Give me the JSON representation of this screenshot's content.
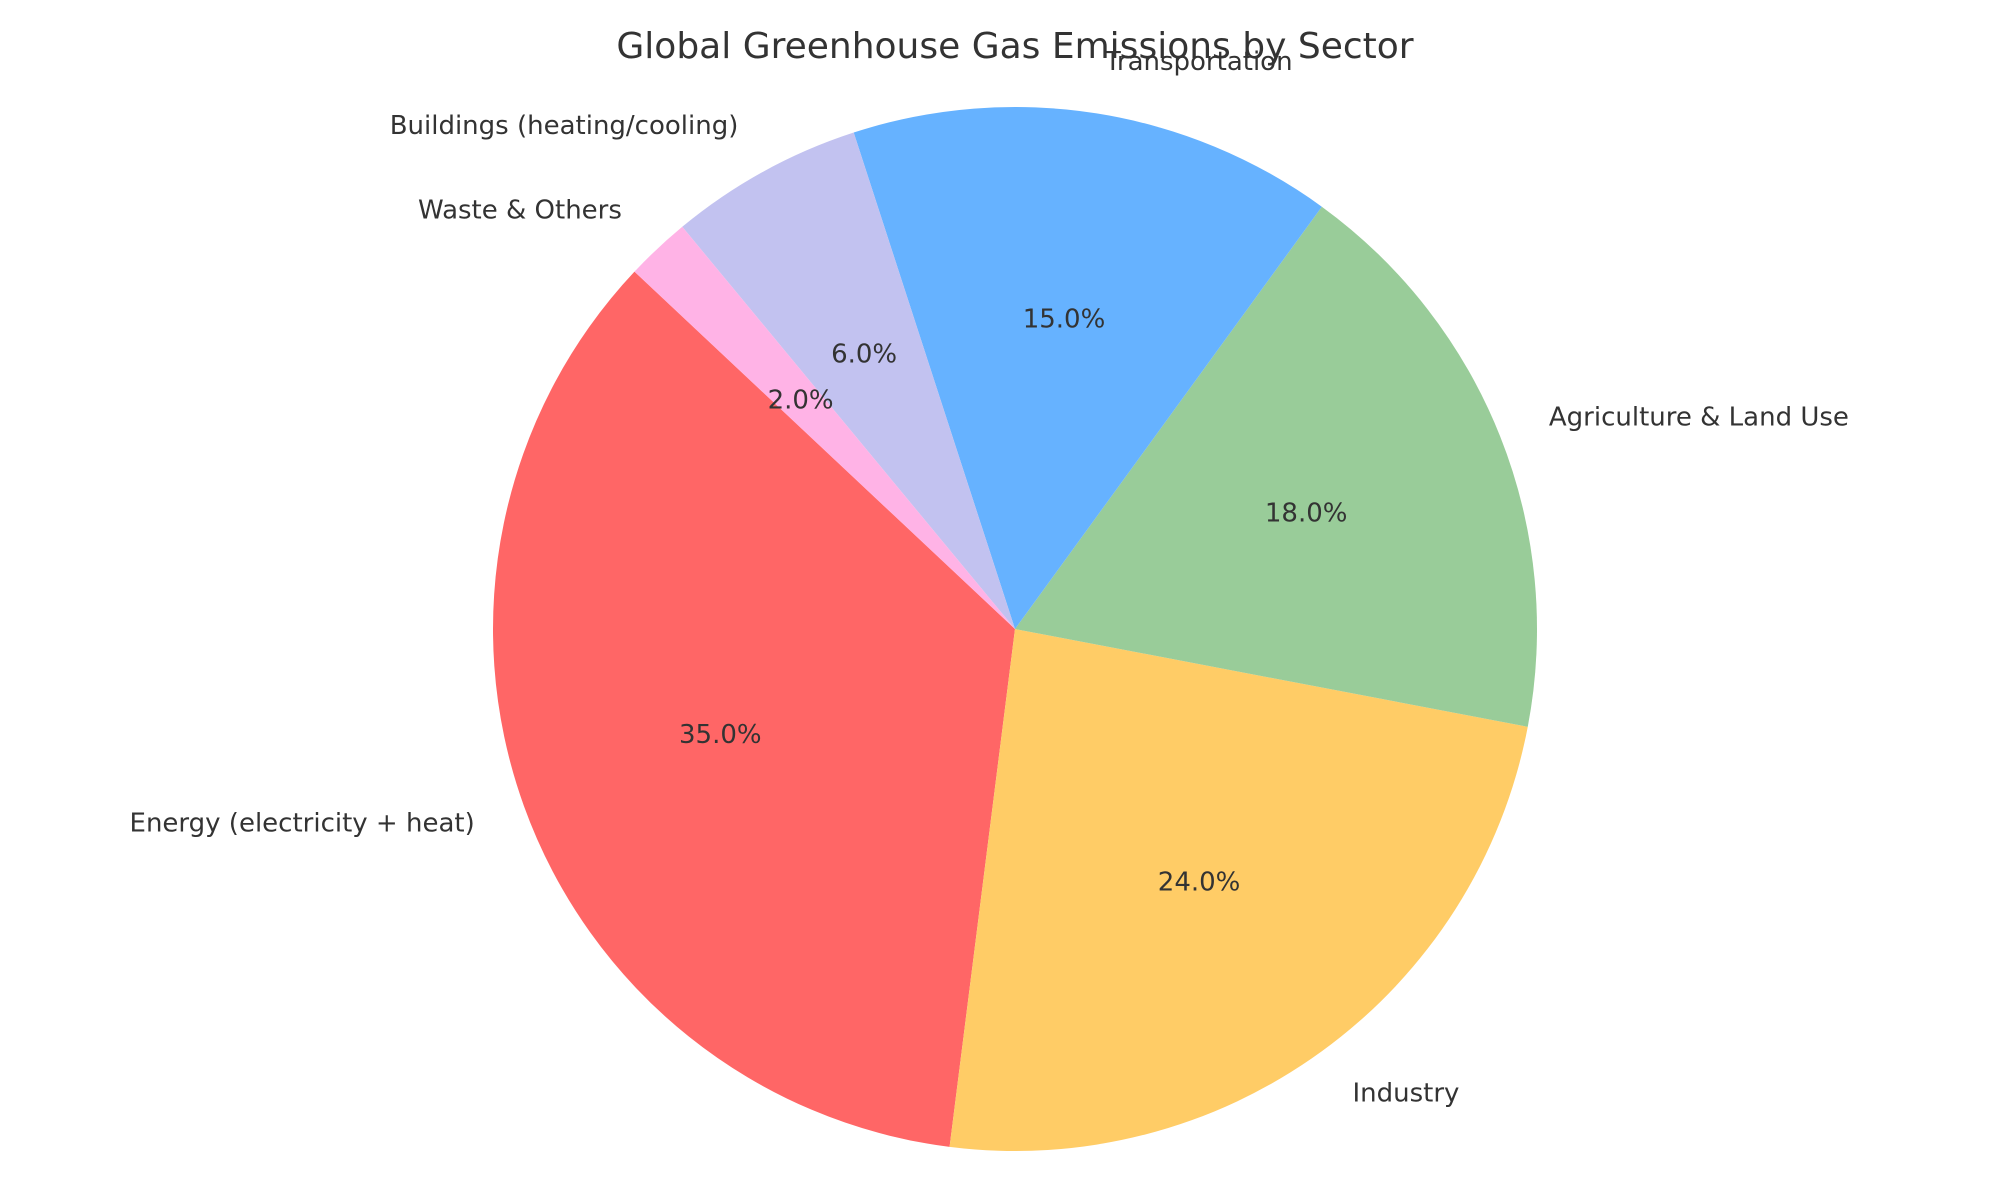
{
  "chart_data": {
    "type": "pie",
    "title": "Global Greenhouse Gas Emissions by Sector",
    "start_angle_deg": 136.8,
    "direction": "counterclockwise",
    "slices": [
      {
        "label": "Energy (electricity + heat)",
        "value": 35.0,
        "pct_label": "35.0%",
        "color": "#ff6666"
      },
      {
        "label": "Industry",
        "value": 24.0,
        "pct_label": "24.0%",
        "color": "#ffcc66"
      },
      {
        "label": "Agriculture & Land Use",
        "value": 18.0,
        "pct_label": "18.0%",
        "color": "#99cc99"
      },
      {
        "label": "Transportation",
        "value": 15.0,
        "pct_label": "15.0%",
        "color": "#66b2ff"
      },
      {
        "label": "Buildings (heating/cooling)",
        "value": 6.0,
        "pct_label": "6.0%",
        "color": "#c2c2f0"
      },
      {
        "label": "Waste & Others",
        "value": 2.0,
        "pct_label": "2.0%",
        "color": "#ffb3e6"
      }
    ]
  }
}
